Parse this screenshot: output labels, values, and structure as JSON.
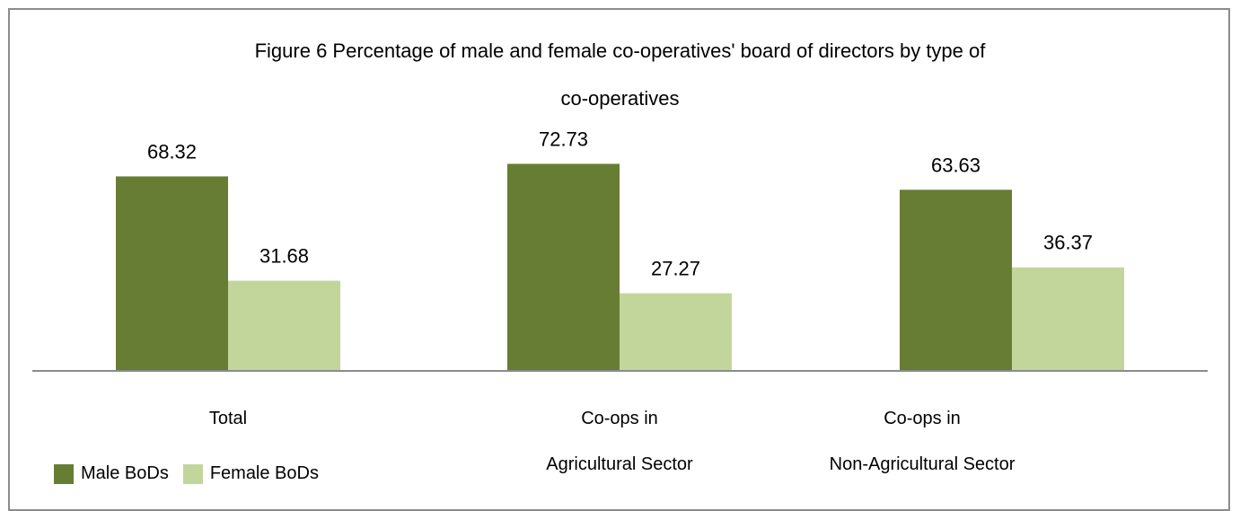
{
  "chart_data": {
    "type": "bar",
    "title_line1": "Figure 6 Percentage of male and female co-operatives' board of directors by type of",
    "title_line2": "co-operatives",
    "categories": [
      [
        "Total"
      ],
      [
        "Co-ops in",
        "Agricultural Sector"
      ],
      [
        "Co-ops in",
        "Non-Agricultural Sector"
      ]
    ],
    "series": [
      {
        "name": "Male BoDs",
        "color": "#677d33",
        "values": [
          68.32,
          72.73,
          63.63
        ]
      },
      {
        "name": "Female BoDs",
        "color": "#c2d69b",
        "values": [
          31.68,
          27.27,
          36.37
        ]
      }
    ],
    "ylim": [
      0,
      100
    ],
    "data_labels": true,
    "legend_position": "bottom-left",
    "grid": false
  }
}
